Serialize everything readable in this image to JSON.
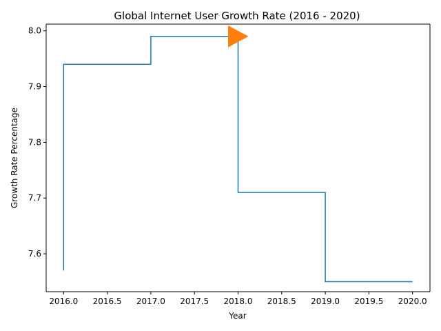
{
  "chart_data": {
    "type": "line",
    "title": "Global Internet User Growth Rate (2016 - 2020)",
    "xlabel": "Year",
    "ylabel": "Growth Rate Percentage",
    "xlim": [
      1995.8,
      2020.2
    ],
    "ylim": [
      7.532,
      8.012
    ],
    "xticks": [
      "2016.0",
      "2016.5",
      "2017.0",
      "2017.5",
      "2018.0",
      "2018.5",
      "2019.0",
      "2019.5",
      "2020.0"
    ],
    "yticks": [
      "7.6",
      "7.7",
      "7.8",
      "7.9",
      "8.0"
    ],
    "grid": false,
    "series": [
      {
        "style": "step",
        "color": "#1f77b4",
        "x": [
          2016,
          2016,
          2017,
          2017,
          2018,
          2018,
          2019,
          2019,
          2020
        ],
        "y": [
          7.57,
          7.94,
          7.94,
          7.99,
          7.99,
          7.71,
          7.71,
          7.55,
          7.55
        ]
      }
    ],
    "annotations": [
      {
        "type": "triangle-marker",
        "direction": "right",
        "color": "#ff7f0e",
        "x": 2018.0,
        "y": 7.99
      }
    ]
  }
}
